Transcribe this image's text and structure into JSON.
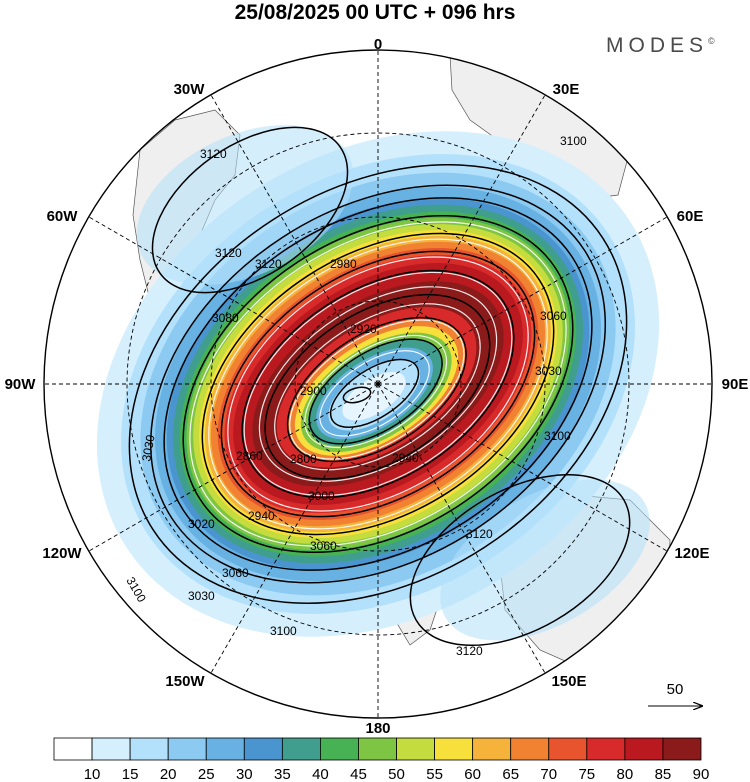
{
  "title": "25/08/2025  00 UTC  + 096 hrs",
  "brand": "MODES",
  "brand_mark": "©",
  "longitude_labels": {
    "lon_0": "0",
    "lon_30e": "30E",
    "lon_60e": "60E",
    "lon_90e": "90E",
    "lon_120e": "120E",
    "lon_150e": "150E",
    "lon_180": "180",
    "lon_150w": "150W",
    "lon_120w": "120W",
    "lon_90w": "90W",
    "lon_60w": "60W",
    "lon_30w": "30W"
  },
  "contour_labels": [
    "3120",
    "3120",
    "3100",
    "3120",
    "3080",
    "3060",
    "3030",
    "2980",
    "2920",
    "2860",
    "2800",
    "2940",
    "3000",
    "3060",
    "3100",
    "3120",
    "3030",
    "3060",
    "3020",
    "2940",
    "2900",
    "3100",
    "3120",
    "3100",
    "3030"
  ],
  "vector_reference": {
    "label": "50"
  },
  "colorbar": {
    "labels": [
      "10",
      "15",
      "20",
      "25",
      "30",
      "35",
      "40",
      "45",
      "50",
      "55",
      "60",
      "65",
      "70",
      "75",
      "80",
      "85",
      "90"
    ],
    "colors": [
      "#ffffff",
      "#d5effd",
      "#b3e0fa",
      "#8ccaf1",
      "#67b1e3",
      "#4a95cf",
      "#3f9e8d",
      "#46b253",
      "#7ec543",
      "#c4dc3d",
      "#f7e03c",
      "#f5b33c",
      "#f08232",
      "#e8542d",
      "#d82a2a",
      "#b9191f",
      "#8b1a1a"
    ]
  }
}
